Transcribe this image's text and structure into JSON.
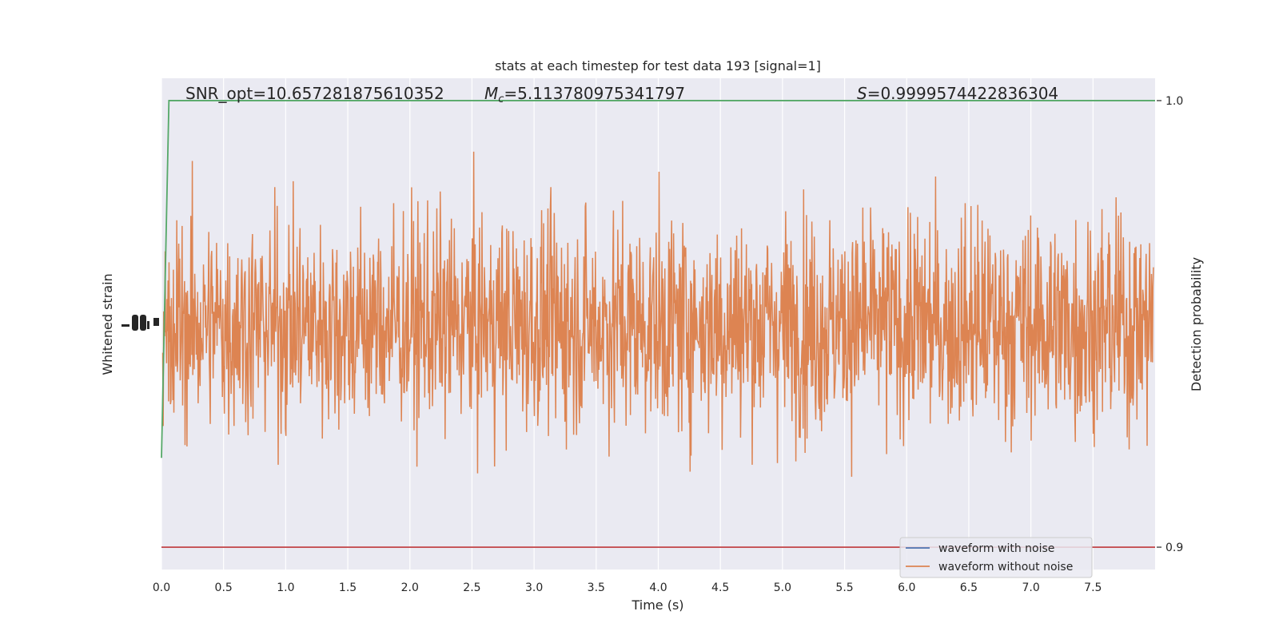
{
  "chart_data": {
    "type": "line",
    "title": "stats at each timestep for test data 193 [signal=1]",
    "xlabel": "Time (s)",
    "ylabel_left": "Whitened strain",
    "ylabel_right": "Detection probability",
    "xlim": [
      0.0,
      8.0
    ],
    "right_ylim": [
      0.895,
      1.005
    ],
    "x_ticks": [
      "0.0",
      "0.5",
      "1.0",
      "1.5",
      "2.0",
      "2.5",
      "3.0",
      "3.5",
      "4.0",
      "4.5",
      "5.0",
      "5.5",
      "6.0",
      "6.5",
      "7.0",
      "7.5"
    ],
    "right_y_ticks": [
      "1.0",
      "0.9"
    ],
    "grid": true,
    "legend_placement": "lower-right",
    "annotations": {
      "snr": "SNR_opt=10.657281875610352",
      "mc": "=5.113780975341797",
      "mc_symbol": "M",
      "mc_sub": "c",
      "s": "=0.9999574422836304",
      "s_symbol": "S"
    },
    "series": [
      {
        "name": "waveform with noise",
        "color": "#4c72b0",
        "kind": "strain"
      },
      {
        "name": "waveform without noise",
        "color": "#dd8452",
        "kind": "strain",
        "y_range": [
          -5.1,
          5.1
        ],
        "sample_rate_hz": 256
      },
      {
        "kind": "detection_probability",
        "color": "#55a868",
        "x": [
          0.0,
          0.06,
          0.12,
          8.0
        ],
        "y": [
          0.92,
          1.0,
          1.0,
          1.0
        ]
      },
      {
        "kind": "threshold",
        "color": "#c44e52",
        "value": 0.9
      }
    ]
  }
}
